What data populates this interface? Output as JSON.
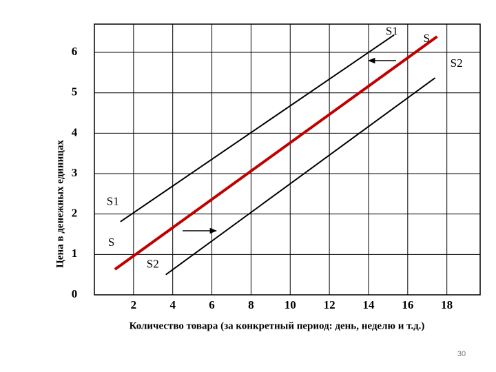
{
  "chart_data": {
    "type": "line",
    "x_label": "Количество товара (за конкретный период: день, неделю и т.д.)",
    "y_label": "Цена в денежных единицах",
    "xlim": [
      0,
      19.7
    ],
    "ylim": [
      0,
      6.7
    ],
    "xticks": [
      2,
      4,
      6,
      8,
      10,
      12,
      14,
      16,
      18
    ],
    "yticks": [
      0,
      1,
      2,
      3,
      4,
      5,
      6
    ],
    "grid": true,
    "series": [
      {
        "name": "S1",
        "color": "#000000",
        "x": [
          1.33,
          15.3
        ],
        "values": [
          1.81,
          6.43
        ]
      },
      {
        "name": "S",
        "color": "#c00000",
        "x": [
          1.05,
          17.5
        ],
        "values": [
          0.63,
          6.39
        ]
      },
      {
        "name": "S2",
        "color": "#000000",
        "x": [
          3.65,
          17.4
        ],
        "values": [
          0.5,
          5.37
        ]
      }
    ]
  },
  "page_number": "30"
}
